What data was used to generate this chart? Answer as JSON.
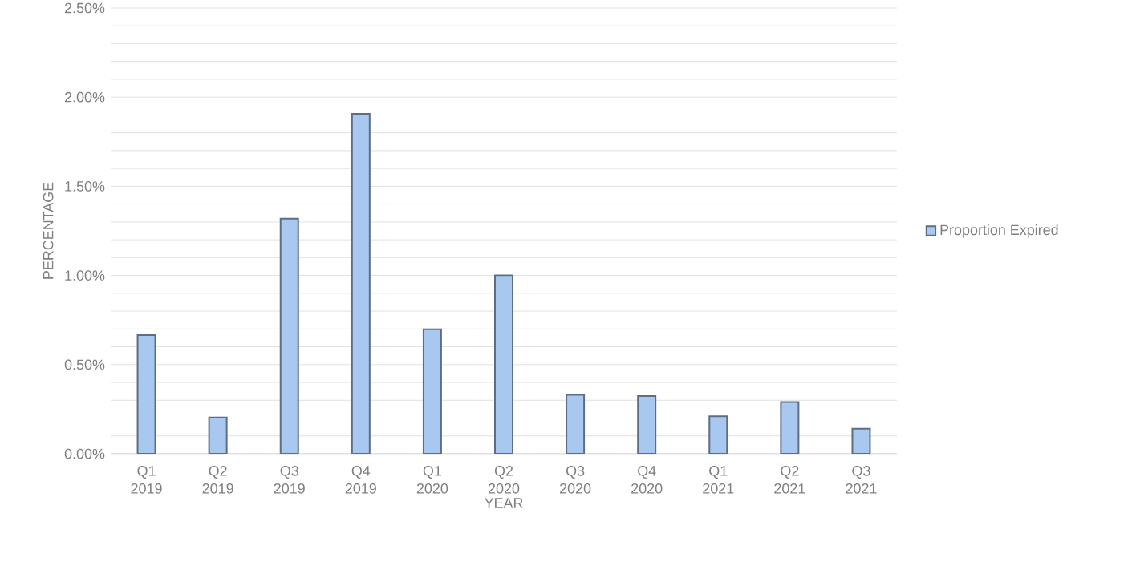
{
  "chart_data": {
    "type": "bar",
    "categories": [
      "Q1 2019",
      "Q2 2019",
      "Q3 2019",
      "Q4 2019",
      "Q1 2020",
      "Q2 2020",
      "Q3 2020",
      "Q4 2020",
      "Q1 2021",
      "Q2 2021",
      "Q3 2021"
    ],
    "series": [
      {
        "name": "Proportion Expired",
        "color": "#a9c8f0",
        "values": [
          0.665,
          0.204,
          1.319,
          1.906,
          0.698,
          1.001,
          0.33,
          0.324,
          0.21,
          0.29,
          0.14
        ]
      }
    ],
    "xlabel": "YEAR",
    "ylabel": "PERCENTAGE",
    "ylim": [
      0,
      2.5
    ],
    "yticks": [
      {
        "value": 0,
        "label": "0.00%"
      },
      {
        "value": 0.1,
        "label": null
      },
      {
        "value": 0.2,
        "label": null
      },
      {
        "value": 0.3,
        "label": null
      },
      {
        "value": 0.4,
        "label": null
      },
      {
        "value": 0.5,
        "label": "0.50%"
      },
      {
        "value": 0.6,
        "label": null
      },
      {
        "value": 0.7,
        "label": null
      },
      {
        "value": 0.8,
        "label": null
      },
      {
        "value": 0.9,
        "label": null
      },
      {
        "value": 1.0,
        "label": "1.00%"
      },
      {
        "value": 1.1,
        "label": null
      },
      {
        "value": 1.2,
        "label": null
      },
      {
        "value": 1.3,
        "label": null
      },
      {
        "value": 1.4,
        "label": null
      },
      {
        "value": 1.5,
        "label": "1.50%"
      },
      {
        "value": 1.6,
        "label": null
      },
      {
        "value": 1.7,
        "label": null
      },
      {
        "value": 1.8,
        "label": null
      },
      {
        "value": 1.9,
        "label": null
      },
      {
        "value": 2.0,
        "label": "2.00%"
      },
      {
        "value": 2.1,
        "label": null
      },
      {
        "value": 2.2,
        "label": null
      },
      {
        "value": 2.3,
        "label": null
      },
      {
        "value": 2.4,
        "label": null
      },
      {
        "value": 2.5,
        "label": "2.50%"
      }
    ],
    "grid": "y",
    "legend": "right"
  }
}
